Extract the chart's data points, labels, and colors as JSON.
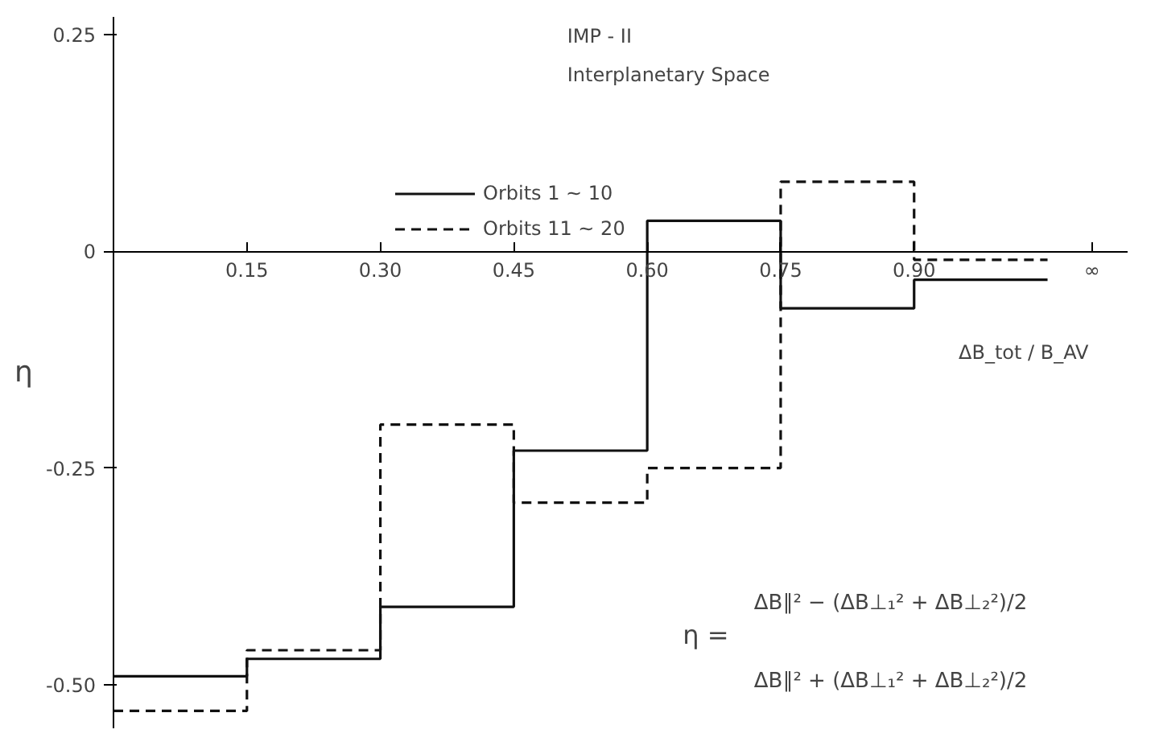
{
  "chart_data": {
    "type": "step",
    "title": "IMP - II",
    "subtitle": "Interplanetary Space",
    "xlabel": "ΔB_tot / B_AV",
    "ylabel": "η",
    "x": [
      0,
      0.15,
      0.3,
      0.45,
      0.6,
      0.75,
      0.9,
      1.05
    ],
    "series": [
      {
        "name": "Orbits 1 ~ 10",
        "color": "#111111",
        "line_style": "solid",
        "values": [
          -0.49,
          -0.47,
          -0.41,
          -0.23,
          0.035,
          -0.066,
          -0.033,
          -0.033
        ]
      },
      {
        "name": "Orbits 11 ~ 20",
        "color": "#111111",
        "line_style": "dashed",
        "values": [
          -0.53,
          -0.46,
          -0.2,
          -0.29,
          -0.25,
          0.08,
          -0.01,
          -0.01
        ]
      }
    ],
    "xlim": [
      0,
      1.14
    ],
    "ylim": [
      -0.55,
      0.27
    ],
    "xticks": [
      0.15,
      {
        "value": 0.3,
        "label": "0.30"
      },
      0.45,
      {
        "value": 0.6,
        "label": "0.60"
      },
      0.75,
      {
        "value": 0.9,
        "label": "0.90"
      },
      {
        "value": 1.1,
        "label": "∞"
      }
    ],
    "yticks": [
      0.25,
      0,
      -0.25,
      {
        "value": -0.5,
        "label": "-0.50"
      }
    ],
    "annotations": [
      "η =",
      "ΔB∥² − (ΔB⊥₁² + ΔB⊥₂²)/2",
      "ΔB∥² + (ΔB⊥₁² + ΔB⊥₂²)/2"
    ],
    "legend": "top",
    "grid": false,
    "marker": "none"
  }
}
